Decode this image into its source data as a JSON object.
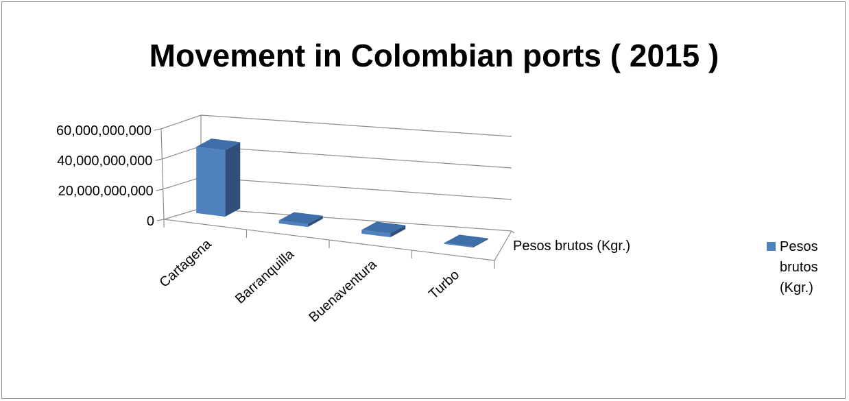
{
  "chart_data": {
    "type": "bar",
    "title": "Movement in Colombian ports ( 2015 )",
    "categories": [
      "Cartagena",
      "Barranquilla",
      "Buenaventura",
      "Turbo"
    ],
    "series": [
      {
        "name": "Pesos brutos (Kgr.)",
        "values": [
          44000000000,
          2000000000,
          2500000000,
          700000000
        ]
      }
    ],
    "y_ticks": [
      "0",
      "20,000,000,000",
      "40,000,000,000",
      "60,000,000,000"
    ],
    "ylim": [
      0,
      60000000000
    ],
    "depth_axis_label": "Pesos brutos (Kgr.)",
    "legend": {
      "position": "right",
      "lines": [
        "Pesos",
        "brutos",
        "(Kgr.)"
      ]
    },
    "grid": true,
    "style": "3d",
    "colors": {
      "bar_front": "#4f81bd",
      "bar_side": "#2f4f7a",
      "bar_top": "#3f6fa8",
      "axis": "#8c8c8c"
    }
  }
}
